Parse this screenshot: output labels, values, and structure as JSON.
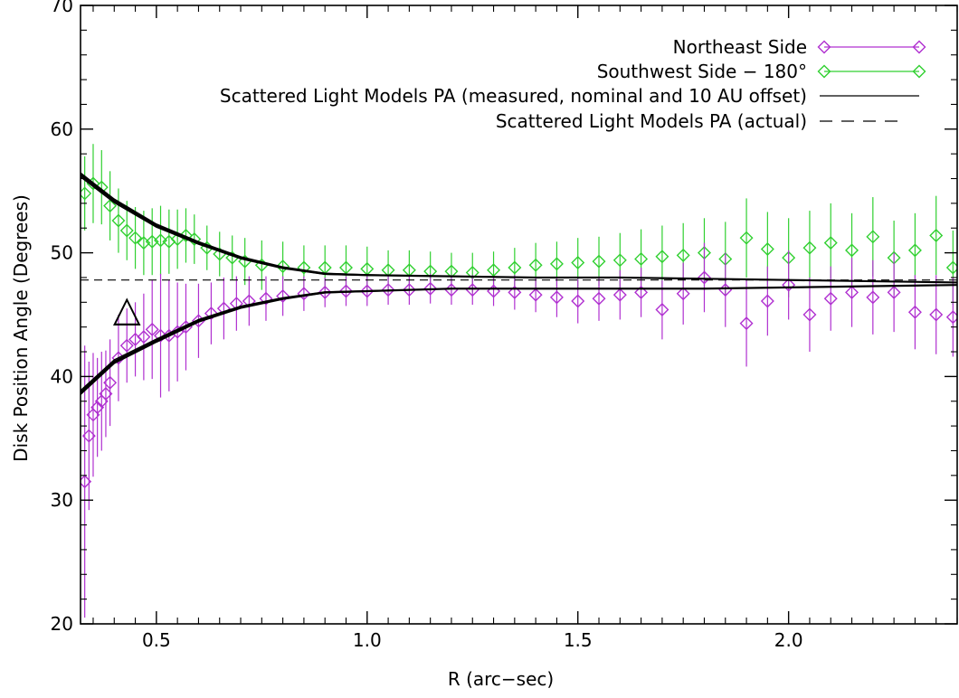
{
  "chart_data": {
    "type": "scatter",
    "xlabel": "R (arc−sec)",
    "ylabel": "Disk Position Angle (Degrees)",
    "xlim": [
      0.32,
      2.4
    ],
    "ylim": [
      20,
      70
    ],
    "x_ticks": [
      {
        "value": 0.5,
        "label": "0.5"
      },
      {
        "value": 1.0,
        "label": "1.0"
      },
      {
        "value": 1.5,
        "label": "1.5"
      },
      {
        "value": 2.0,
        "label": "2.0"
      }
    ],
    "y_ticks": [
      {
        "value": 20,
        "label": "20"
      },
      {
        "value": 30,
        "label": "30"
      },
      {
        "value": 40,
        "label": "40"
      },
      {
        "value": 50,
        "label": "50"
      },
      {
        "value": 60,
        "label": "60"
      },
      {
        "value": 70,
        "label": "70"
      }
    ],
    "grid": false,
    "legend_position": "top-right",
    "legend": [
      {
        "label": "Northeast Side",
        "style": "diamond-line",
        "color": "#b030d0"
      },
      {
        "label": "Southwest Side − 180°",
        "style": "diamond-line",
        "color": "#30d030"
      },
      {
        "label": "Scattered Light Models PA (measured, nominal and 10 AU offset)",
        "style": "solid",
        "color": "#000000"
      },
      {
        "label": "Scattered Light Models PA (actual)",
        "style": "dashed",
        "color": "#000000"
      }
    ],
    "annotations": [
      {
        "text": "△",
        "x": 0.43,
        "y": 45.5
      }
    ],
    "series": [
      {
        "name": "Southwest Side − 180°",
        "color": "#30d030",
        "marker": "diamond",
        "x": [
          0.33,
          0.35,
          0.37,
          0.39,
          0.41,
          0.43,
          0.45,
          0.47,
          0.49,
          0.51,
          0.53,
          0.55,
          0.57,
          0.59,
          0.62,
          0.65,
          0.68,
          0.71,
          0.75,
          0.8,
          0.85,
          0.9,
          0.95,
          1.0,
          1.05,
          1.1,
          1.15,
          1.2,
          1.25,
          1.3,
          1.35,
          1.4,
          1.45,
          1.5,
          1.55,
          1.6,
          1.65,
          1.7,
          1.75,
          1.8,
          1.85,
          1.9,
          1.95,
          2.0,
          2.05,
          2.1,
          2.15,
          2.2,
          2.25,
          2.3,
          2.35,
          2.39
        ],
        "y": [
          54.8,
          55.6,
          55.3,
          53.8,
          52.6,
          51.8,
          51.2,
          50.8,
          50.9,
          51.0,
          50.9,
          51.1,
          51.4,
          51.1,
          50.4,
          49.9,
          49.6,
          49.3,
          49.0,
          48.9,
          48.8,
          48.8,
          48.8,
          48.7,
          48.6,
          48.6,
          48.5,
          48.5,
          48.4,
          48.6,
          48.8,
          49.0,
          49.1,
          49.2,
          49.3,
          49.4,
          49.5,
          49.7,
          49.8,
          50.0,
          49.5,
          51.2,
          50.3,
          49.6,
          50.4,
          50.8,
          50.2,
          51.3,
          49.6,
          50.2,
          51.4,
          48.8
        ],
        "error": [
          3.0,
          3.2,
          3.0,
          2.8,
          2.6,
          2.4,
          2.5,
          2.6,
          2.7,
          2.8,
          2.6,
          2.4,
          2.2,
          2.0,
          1.8,
          1.8,
          1.8,
          1.9,
          2.0,
          2.0,
          1.8,
          1.8,
          1.8,
          1.8,
          1.6,
          1.6,
          1.6,
          1.5,
          1.6,
          1.5,
          1.6,
          1.8,
          1.8,
          2.0,
          2.0,
          2.2,
          2.4,
          2.5,
          2.6,
          2.8,
          3.0,
          3.2,
          3.0,
          3.2,
          3.0,
          3.2,
          3.0,
          3.2,
          3.0,
          3.0,
          3.2,
          3.0
        ]
      },
      {
        "name": "Northeast Side",
        "color": "#b030d0",
        "marker": "diamond",
        "x": [
          0.33,
          0.34,
          0.35,
          0.36,
          0.37,
          0.38,
          0.39,
          0.41,
          0.43,
          0.45,
          0.47,
          0.49,
          0.51,
          0.53,
          0.55,
          0.57,
          0.6,
          0.63,
          0.66,
          0.69,
          0.72,
          0.76,
          0.8,
          0.85,
          0.9,
          0.95,
          1.0,
          1.05,
          1.1,
          1.15,
          1.2,
          1.25,
          1.3,
          1.35,
          1.4,
          1.45,
          1.5,
          1.55,
          1.6,
          1.65,
          1.7,
          1.75,
          1.8,
          1.85,
          1.9,
          1.95,
          2.0,
          2.05,
          2.1,
          2.15,
          2.2,
          2.25,
          2.3,
          2.35,
          2.39
        ],
        "y": [
          31.5,
          35.2,
          36.9,
          37.5,
          38.0,
          38.6,
          39.5,
          41.5,
          42.5,
          43.0,
          43.2,
          43.8,
          43.3,
          43.3,
          43.6,
          44.0,
          44.5,
          45.1,
          45.5,
          45.9,
          46.1,
          46.3,
          46.5,
          46.7,
          46.8,
          46.9,
          46.9,
          47.0,
          47.0,
          47.1,
          47.0,
          47.0,
          46.9,
          46.8,
          46.6,
          46.4,
          46.1,
          46.3,
          46.6,
          46.8,
          45.4,
          46.7,
          48.0,
          47.0,
          44.3,
          46.1,
          47.4,
          45.0,
          46.3,
          46.8,
          46.4,
          46.8,
          45.2,
          45.0,
          44.8
        ],
        "error": [
          11.0,
          6.0,
          5.0,
          4.0,
          4.0,
          3.5,
          3.5,
          3.5,
          3.0,
          3.0,
          3.5,
          4.0,
          5.0,
          4.5,
          4.0,
          3.5,
          3.0,
          2.5,
          2.5,
          2.2,
          2.0,
          1.8,
          1.6,
          1.4,
          1.2,
          1.2,
          1.2,
          1.2,
          1.2,
          1.2,
          1.2,
          1.2,
          1.2,
          1.4,
          1.4,
          1.6,
          1.8,
          1.8,
          2.0,
          2.0,
          2.4,
          2.5,
          2.8,
          3.0,
          3.5,
          2.8,
          2.8,
          3.0,
          2.6,
          2.8,
          3.0,
          3.2,
          3.0,
          3.2,
          3.2
        ]
      }
    ],
    "model_curves": [
      {
        "name": "upper",
        "color": "#000000",
        "style": "solid",
        "x": [
          0.32,
          0.4,
          0.5,
          0.6,
          0.7,
          0.8,
          0.9,
          1.0,
          1.2,
          1.4,
          1.6,
          1.8,
          2.0,
          2.2,
          2.4
        ],
        "y": [
          56.3,
          54.2,
          52.2,
          50.8,
          49.6,
          48.8,
          48.3,
          48.2,
          48.1,
          48.0,
          48.0,
          47.9,
          47.8,
          47.7,
          47.6
        ]
      },
      {
        "name": "lower",
        "color": "#000000",
        "style": "solid",
        "x": [
          0.32,
          0.4,
          0.5,
          0.6,
          0.7,
          0.8,
          0.9,
          1.0,
          1.2,
          1.4,
          1.6,
          1.8,
          2.0,
          2.2,
          2.4
        ],
        "y": [
          38.7,
          41.2,
          42.9,
          44.5,
          45.6,
          46.3,
          46.8,
          46.9,
          47.1,
          47.1,
          47.1,
          47.1,
          47.2,
          47.3,
          47.4
        ]
      },
      {
        "name": "actual",
        "color": "#000000",
        "style": "dashed",
        "x": [
          0.32,
          2.4
        ],
        "y": [
          47.8,
          47.8
        ]
      }
    ]
  }
}
